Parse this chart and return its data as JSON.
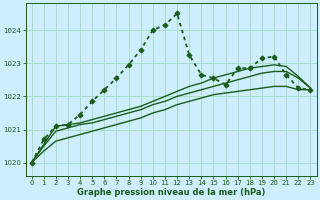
{
  "background_color": "#cceeff",
  "grid_color": "#aaddcc",
  "line_color": "#1a5c1a",
  "xlabel": "Graphe pression niveau de la mer (hPa)",
  "xlim": [
    -0.5,
    23.5
  ],
  "ylim": [
    1019.6,
    1024.8
  ],
  "yticks": [
    1020,
    1021,
    1022,
    1023,
    1024
  ],
  "xticks": [
    0,
    1,
    2,
    3,
    4,
    5,
    6,
    7,
    8,
    9,
    10,
    11,
    12,
    13,
    14,
    15,
    16,
    17,
    18,
    19,
    20,
    21,
    22,
    23
  ],
  "series": [
    {
      "x": [
        0,
        1,
        2,
        3,
        4,
        5,
        6,
        7,
        8,
        9,
        10,
        11,
        12,
        13,
        14,
        15,
        16,
        17,
        18,
        19,
        20,
        21,
        22,
        23
      ],
      "y": [
        1020.0,
        1020.35,
        1020.65,
        1020.75,
        1020.85,
        1020.95,
        1021.05,
        1021.15,
        1021.25,
        1021.35,
        1021.5,
        1021.6,
        1021.75,
        1021.85,
        1021.95,
        1022.05,
        1022.1,
        1022.15,
        1022.2,
        1022.25,
        1022.3,
        1022.3,
        1022.2,
        1022.2
      ],
      "style": "solid",
      "linewidth": 1.0
    },
    {
      "x": [
        0,
        1,
        2,
        3,
        4,
        5,
        6,
        7,
        8,
        9,
        10,
        11,
        12,
        13,
        14,
        15,
        16,
        17,
        18,
        19,
        20,
        21,
        22,
        23
      ],
      "y": [
        1020.0,
        1020.5,
        1020.95,
        1021.05,
        1021.15,
        1021.2,
        1021.3,
        1021.4,
        1021.5,
        1021.6,
        1021.75,
        1021.85,
        1022.0,
        1022.1,
        1022.2,
        1022.3,
        1022.4,
        1022.5,
        1022.6,
        1022.7,
        1022.75,
        1022.75,
        1022.55,
        1022.25
      ],
      "style": "solid",
      "linewidth": 1.0
    },
    {
      "x": [
        0,
        1,
        2,
        3,
        4,
        5,
        6,
        7,
        8,
        9,
        10,
        11,
        12,
        13,
        14,
        15,
        16,
        17,
        18,
        19,
        20,
        21,
        22,
        23
      ],
      "y": [
        1020.0,
        1020.55,
        1021.1,
        1021.15,
        1021.2,
        1021.3,
        1021.4,
        1021.5,
        1021.6,
        1021.7,
        1021.85,
        1022.0,
        1022.15,
        1022.3,
        1022.4,
        1022.55,
        1022.65,
        1022.75,
        1022.85,
        1022.9,
        1022.95,
        1022.9,
        1022.6,
        1022.25
      ],
      "style": "solid",
      "linewidth": 1.0
    },
    {
      "x": [
        0,
        1,
        2,
        3,
        4,
        5,
        6,
        7,
        8,
        9,
        10,
        11,
        12,
        13,
        14,
        15,
        16,
        17,
        18,
        19,
        20,
        21,
        22,
        23
      ],
      "y": [
        1020.0,
        1020.7,
        1021.1,
        1021.15,
        1021.45,
        1021.85,
        1022.2,
        1022.55,
        1022.95,
        1023.4,
        1024.0,
        1024.15,
        1024.5,
        1023.25,
        1022.65,
        1022.55,
        1022.35,
        1022.85,
        1022.85,
        1023.15,
        1023.2,
        1022.65,
        1022.25,
        1022.2
      ],
      "style": "dotted",
      "linewidth": 1.3,
      "marker": "D",
      "markersize": 2.5
    }
  ]
}
